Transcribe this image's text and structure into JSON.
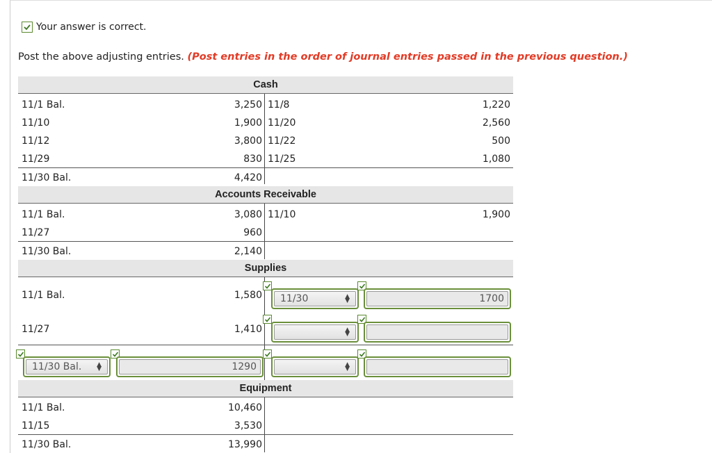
{
  "feedback": "Your answer is correct.",
  "instruction": {
    "text": "Post the above adjusting entries.",
    "note": "(Post entries in the order of journal entries passed in the previous question.)"
  },
  "accounts": {
    "cash": {
      "title": "Cash",
      "rows": [
        {
          "dr_label": "11/1 Bal.",
          "dr_amt": "3,250",
          "cr_label": "11/8",
          "cr_amt": "1,220"
        },
        {
          "dr_label": "11/10",
          "dr_amt": "1,900",
          "cr_label": "11/20",
          "cr_amt": "2,560"
        },
        {
          "dr_label": "11/12",
          "dr_amt": "3,800",
          "cr_label": "11/22",
          "cr_amt": "500"
        },
        {
          "dr_label": "11/29",
          "dr_amt": "830",
          "cr_label": "11/25",
          "cr_amt": "1,080"
        }
      ],
      "balance": {
        "label": "11/30 Bal.",
        "amt": "4,420"
      }
    },
    "ar": {
      "title": "Accounts Receivable",
      "rows": [
        {
          "dr_label": "11/1 Bal.",
          "dr_amt": "3,080",
          "cr_label": "11/10",
          "cr_amt": "1,900"
        },
        {
          "dr_label": "11/27",
          "dr_amt": "960"
        }
      ],
      "balance": {
        "label": "11/30 Bal.",
        "amt": "2,140"
      }
    },
    "supplies": {
      "title": "Supplies",
      "rows": [
        {
          "dr_label": "11/1 Bal.",
          "dr_amt": "1,580",
          "cr_select": "11/30",
          "cr_input": "1700"
        },
        {
          "dr_label": "11/27",
          "dr_amt": "1,410",
          "cr_select": "",
          "cr_input": ""
        }
      ],
      "balance": {
        "label_select": "11/30 Bal.",
        "amt_input": "1290",
        "cr_select": "",
        "cr_input": ""
      }
    },
    "equipment": {
      "title": "Equipment",
      "rows": [
        {
          "dr_label": "11/1 Bal.",
          "dr_amt": "10,460"
        },
        {
          "dr_label": "11/15",
          "dr_amt": "3,530"
        }
      ],
      "balance": {
        "label": "11/30 Bal.",
        "amt": "13,990"
      }
    }
  },
  "colors": {
    "accent_green": "#6a8f3a",
    "red_note": "#e23b26"
  }
}
